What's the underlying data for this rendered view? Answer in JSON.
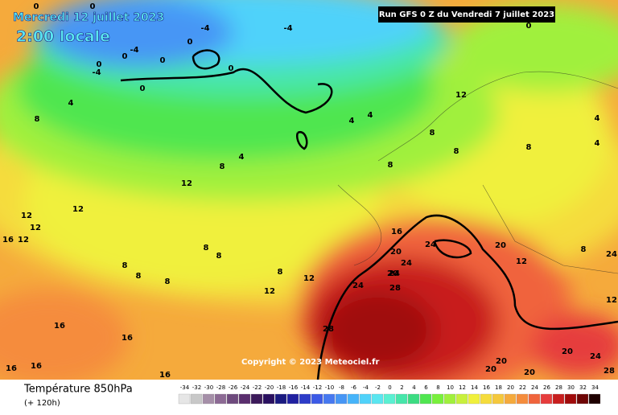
{
  "header": {
    "date": "Mercredi 12 juillet 2023",
    "time": "2:00 locale",
    "run": "Run GFS 0 Z du Vendredi 7 juillet 2023"
  },
  "copyright": "Copyright © 2023 Meteociel.fr",
  "legend": {
    "title": "Température 850hPa",
    "lead": "(+ 120h)"
  },
  "colorbar": {
    "ticks": [
      -34,
      -32,
      -30,
      -28,
      -26,
      -24,
      -22,
      -20,
      -18,
      -16,
      -14,
      -12,
      -10,
      -8,
      -6,
      -4,
      -2,
      0,
      2,
      4,
      6,
      8,
      10,
      12,
      14,
      16,
      18,
      20,
      22,
      24,
      26,
      28,
      30,
      32,
      34
    ],
    "colors": [
      "#e6e6e6",
      "#c8c8c8",
      "#a58fa8",
      "#8c6a94",
      "#6e4a7d",
      "#5a2e6e",
      "#3c1a5a",
      "#2a1060",
      "#1a1a80",
      "#2020a0",
      "#2d3cc8",
      "#3c5ae6",
      "#4678f0",
      "#4696f5",
      "#46b4fa",
      "#50d2fa",
      "#5ae6f0",
      "#5af0d2",
      "#46e6aa",
      "#3cdc82",
      "#50e650",
      "#78f03c",
      "#a0f03c",
      "#c8f03c",
      "#f0f03c",
      "#f5dc3c",
      "#f5c83c",
      "#f5aa3c",
      "#f58c3c",
      "#f0643c",
      "#e63c3c",
      "#c81e1e",
      "#a00a0a",
      "#6e0505",
      "#1e0000"
    ]
  },
  "contour_labels": [
    "0",
    "0",
    "0",
    "0",
    "0",
    "0",
    "0",
    "0",
    "0",
    "-4",
    "-4",
    "-4",
    "-4",
    "4",
    "4",
    "4",
    "4",
    "4",
    "4",
    "8",
    "8",
    "8",
    "8",
    "8",
    "8",
    "8",
    "8",
    "8",
    "8",
    "8",
    "8",
    "8",
    "12",
    "12",
    "12",
    "12",
    "12",
    "12",
    "12",
    "12",
    "12",
    "12",
    "16",
    "16",
    "16",
    "16",
    "16",
    "16",
    "16",
    "20",
    "20",
    "20",
    "20",
    "20",
    "20",
    "20",
    "24",
    "24",
    "24",
    "24",
    "24",
    "24",
    "28",
    "28",
    "28"
  ]
}
